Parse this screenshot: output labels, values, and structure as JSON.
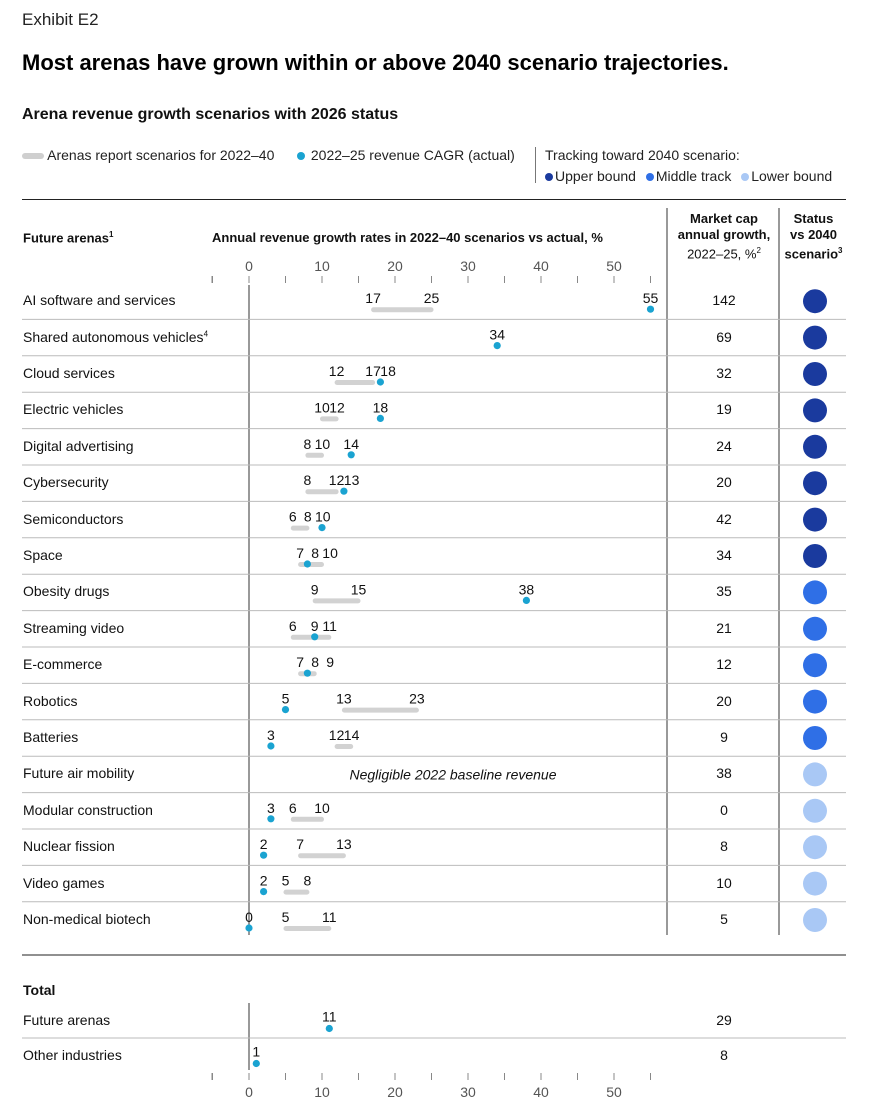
{
  "exhibit": "Exhibit E2",
  "headline": "Most arenas have grown within or above 2040 scenario trajectories.",
  "subtitle": "Arena revenue growth scenarios with 2026 status",
  "legend": {
    "scenarios": "Arenas report scenarios for 2022–40",
    "cagr": "2022–25 revenue CAGR (actual)",
    "tracking_title": "Tracking toward 2040 scenario:",
    "upper": "Upper bound",
    "middle": "Middle track",
    "lower": "Lower bound"
  },
  "colors": {
    "upper": "#1a3a9e",
    "middle": "#2f6fe6",
    "lower": "#a9c8f5",
    "dot": "#1aa3d1",
    "bar": "#d2d2d2"
  },
  "headers": {
    "arenas": "Future arenas",
    "arenas_note": "1",
    "growth": "Annual revenue growth rates in 2022–40 scenarios vs actual, %",
    "mcap_line1": "Market cap",
    "mcap_line2": "annual growth,",
    "mcap_line3": "2022–25, %",
    "mcap_note": "2",
    "status_line1": "Status",
    "status_line2": "vs 2040",
    "status_line3": "scenario",
    "status_note": "3"
  },
  "total_header": "Total",
  "chart_data": {
    "type": "range-dot",
    "xlim": [
      0,
      55
    ],
    "ticks": [
      0,
      10,
      20,
      30,
      40,
      50
    ],
    "rows": [
      {
        "name": "AI software and services",
        "low": 17,
        "high": 25,
        "actual": 55,
        "labels": [
          "17",
          "25",
          "55"
        ],
        "mcap": "142",
        "status": "upper"
      },
      {
        "name": "Shared autonomous vehicles",
        "note": "4",
        "low": null,
        "high": null,
        "actual": 34,
        "labels": [
          "34"
        ],
        "mcap": "69",
        "status": "upper"
      },
      {
        "name": "Cloud services",
        "low": 12,
        "high": 17,
        "actual": 18,
        "labels": [
          "12",
          "17",
          "18"
        ],
        "mcap": "32",
        "status": "upper"
      },
      {
        "name": "Electric vehicles",
        "low": 10,
        "high": 12,
        "actual": 18,
        "labels": [
          "10",
          "12",
          "18"
        ],
        "mcap": "19",
        "status": "upper"
      },
      {
        "name": "Digital advertising",
        "low": 8,
        "high": 10,
        "actual": 14,
        "labels": [
          "8",
          "10",
          "14"
        ],
        "mcap": "24",
        "status": "upper"
      },
      {
        "name": "Cybersecurity",
        "low": 8,
        "high": 12,
        "actual": 13,
        "labels": [
          "8",
          "12",
          "13"
        ],
        "mcap": "20",
        "status": "upper"
      },
      {
        "name": "Semiconductors",
        "low": 6,
        "high": 8,
        "actual": 10,
        "labels": [
          "6",
          "8",
          "10"
        ],
        "mcap": "42",
        "status": "upper"
      },
      {
        "name": "Space",
        "low": 7,
        "high": 10,
        "actual": 8,
        "labels": [
          "7",
          "8",
          "10"
        ],
        "mcap": "34",
        "status": "upper"
      },
      {
        "name": "Obesity drugs",
        "low": 9,
        "high": 15,
        "actual": 38,
        "labels": [
          "9",
          "15",
          "38"
        ],
        "mcap": "35",
        "status": "middle"
      },
      {
        "name": "Streaming video",
        "low": 6,
        "high": 11,
        "actual": 9,
        "labels": [
          "6",
          "9",
          "11"
        ],
        "mcap": "21",
        "status": "middle"
      },
      {
        "name": "E-commerce",
        "low": 7,
        "high": 9,
        "actual": 8,
        "labels": [
          "7",
          "8",
          "9"
        ],
        "mcap": "12",
        "status": "middle"
      },
      {
        "name": "Robotics",
        "low": 13,
        "high": 23,
        "actual": 5,
        "labels": [
          "5",
          "13",
          "23"
        ],
        "mcap": "20",
        "status": "middle"
      },
      {
        "name": "Batteries",
        "low": 12,
        "high": 14,
        "actual": 3,
        "labels": [
          "3",
          "12",
          "14"
        ],
        "mcap": "9",
        "status": "middle"
      },
      {
        "name": "Future air mobility",
        "low": null,
        "high": null,
        "actual": null,
        "labels": [],
        "note_text": "Negligible 2022 baseline revenue",
        "mcap": "38",
        "status": "lower"
      },
      {
        "name": "Modular construction",
        "low": 6,
        "high": 10,
        "actual": 3,
        "labels": [
          "3",
          "6",
          "10"
        ],
        "mcap": "0",
        "status": "lower"
      },
      {
        "name": "Nuclear fission",
        "low": 7,
        "high": 13,
        "actual": 2,
        "labels": [
          "2",
          "7",
          "13"
        ],
        "mcap": "8",
        "status": "lower"
      },
      {
        "name": "Video games",
        "low": 5,
        "high": 8,
        "actual": 2,
        "labels": [
          "2",
          "5",
          "8"
        ],
        "mcap": "10",
        "status": "lower"
      },
      {
        "name": "Non-medical biotech",
        "low": 5,
        "high": 11,
        "actual": 0,
        "labels": [
          "0",
          "5",
          "11"
        ],
        "mcap": "5",
        "status": "lower"
      }
    ],
    "totals": [
      {
        "name": "Future arenas",
        "actual": 11,
        "labels": [
          "11"
        ],
        "mcap": "29"
      },
      {
        "name": "Other industries",
        "actual": 1,
        "labels": [
          "1"
        ],
        "mcap": "8"
      }
    ]
  }
}
